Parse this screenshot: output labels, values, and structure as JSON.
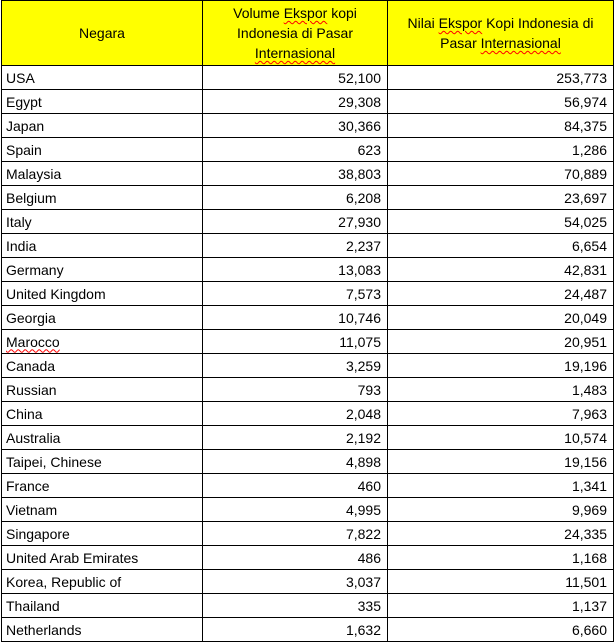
{
  "headers": {
    "country": "Negara",
    "volume_line1": "Volume",
    "volume_word": "Ekspor",
    "volume_line1b": "kopi",
    "volume_line2": "Indonesia di Pasar",
    "volume_line3": "Internasional",
    "value_line1a": "Nilai",
    "value_word": "Ekspor",
    "value_line1b": "Kopi Indonesia di",
    "value_line2a": "Pasar",
    "value_line2b": "Internasional"
  },
  "rows": [
    {
      "country": "USA",
      "volume": "52,100",
      "value": "253,773"
    },
    {
      "country": "Egypt",
      "volume": "29,308",
      "value": "56,974"
    },
    {
      "country": "Japan",
      "volume": "30,366",
      "value": "84,375"
    },
    {
      "country": "Spain",
      "volume": "623",
      "value": "1,286"
    },
    {
      "country": "Malaysia",
      "volume": "38,803",
      "value": "70,889"
    },
    {
      "country": "Belgium",
      "volume": "6,208",
      "value": "23,697"
    },
    {
      "country": "Italy",
      "volume": "27,930",
      "value": "54,025"
    },
    {
      "country": "India",
      "volume": "2,237",
      "value": "6,654"
    },
    {
      "country": "Germany",
      "volume": "13,083",
      "value": "42,831"
    },
    {
      "country": "United Kingdom",
      "volume": "7,573",
      "value": "24,487"
    },
    {
      "country": "Georgia",
      "volume": "10,746",
      "value": "20,049"
    },
    {
      "country": "Marocco",
      "volume": "11,075",
      "value": "20,951"
    },
    {
      "country": "Canada",
      "volume": "3,259",
      "value": "19,196"
    },
    {
      "country": "Russian",
      "volume": "793",
      "value": "1,483"
    },
    {
      "country": "China",
      "volume": "2,048",
      "value": "7,963"
    },
    {
      "country": "Australia",
      "volume": "2,192",
      "value": "10,574"
    },
    {
      "country": "Taipei, Chinese",
      "volume": "4,898",
      "value": "19,156"
    },
    {
      "country": "France",
      "volume": "460",
      "value": "1,341"
    },
    {
      "country": "Vietnam",
      "volume": "4,995",
      "value": "9,969"
    },
    {
      "country": "Singapore",
      "volume": "7,822",
      "value": "24,335"
    },
    {
      "country": "United Arab Emirates",
      "volume": "486",
      "value": "1,168"
    },
    {
      "country": "Korea, Republic of",
      "volume": "3,037",
      "value": "11,501"
    },
    {
      "country": "Thailand",
      "volume": "335",
      "value": "1,137"
    },
    {
      "country": "Netherlands",
      "volume": "1,632",
      "value": "6,660"
    }
  ],
  "misspelled_countries": [
    "Marocco"
  ],
  "colors": {
    "header_background": "#ffff00",
    "grid_lines": "#000000",
    "spellcheck_underline": "#ff0000"
  }
}
